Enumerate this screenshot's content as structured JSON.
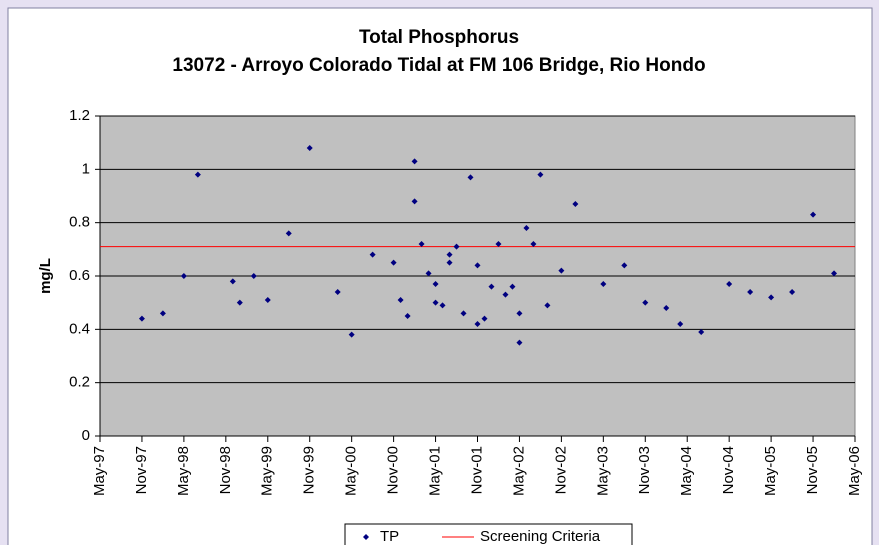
{
  "chart_data": {
    "type": "scatter",
    "title": [
      "Total Phosphorus",
      "13072 - Arroyo Colorado Tidal at FM 106 Bridge, Rio Hondo"
    ],
    "y_label": "mg/L",
    "series": [
      {
        "name": "TP",
        "color": "#000080",
        "x": [
          "1997-11",
          "1998-02",
          "1998-05",
          "1998-07",
          "1998-12",
          "1999-01",
          "1999-03",
          "1999-05",
          "1999-08",
          "1999-11",
          "2000-03",
          "2000-05",
          "2000-08",
          "2000-11",
          "2000-12",
          "2001-01",
          "2001-02",
          "2001-02",
          "2001-03",
          "2001-04",
          "2001-05",
          "2001-05",
          "2001-06",
          "2001-07",
          "2001-07",
          "2001-08",
          "2001-09",
          "2001-10",
          "2001-11",
          "2001-11",
          "2001-12",
          "2002-01",
          "2002-02",
          "2002-03",
          "2002-04",
          "2002-05",
          "2002-05",
          "2002-06",
          "2002-07",
          "2002-08",
          "2002-09",
          "2002-11",
          "2003-01",
          "2003-05",
          "2003-08",
          "2003-11",
          "2004-02",
          "2004-04",
          "2004-07",
          "2004-11",
          "2005-02",
          "2005-05",
          "2005-08",
          "2005-11",
          "2006-02"
        ],
        "values": [
          0.44,
          0.46,
          0.6,
          0.98,
          0.58,
          0.5,
          0.6,
          0.51,
          0.76,
          1.08,
          0.54,
          0.38,
          0.68,
          0.65,
          0.51,
          0.45,
          1.03,
          0.88,
          0.72,
          0.61,
          0.57,
          0.5,
          0.49,
          0.68,
          0.65,
          0.71,
          0.46,
          0.97,
          0.42,
          0.64,
          0.44,
          0.56,
          0.72,
          0.53,
          0.56,
          0.35,
          0.46,
          0.78,
          0.72,
          0.98,
          0.49,
          0.62,
          0.87,
          0.57,
          0.64,
          0.5,
          0.48,
          0.42,
          0.39,
          0.57,
          0.54,
          0.52,
          0.54,
          0.83,
          0.61
        ]
      }
    ],
    "reference_line": {
      "name": "Screening Criteria",
      "value": 0.71,
      "color": "#ff0000"
    },
    "plot_background": "#c0c0c0",
    "grid": true,
    "legend": "bottom",
    "ylim": [
      0,
      1.2
    ],
    "yticks": [
      0,
      {
        "value": 0.2,
        "label": "0.2"
      },
      {
        "value": 0.4,
        "label": "0.4"
      },
      {
        "value": 0.6,
        "label": "0.6"
      },
      {
        "value": 0.8,
        "label": "0.8"
      },
      1,
      {
        "value": 1.2,
        "label": "1.2"
      }
    ],
    "xlim": [
      "1997-05",
      "2006-05"
    ],
    "xticks": [
      {
        "value": "1997-05",
        "label": "May-97"
      },
      {
        "value": "1997-11",
        "label": "Nov-97"
      },
      {
        "value": "1998-05",
        "label": "May-98"
      },
      {
        "value": "1998-11",
        "label": "Nov-98"
      },
      {
        "value": "1999-05",
        "label": "May-99"
      },
      {
        "value": "1999-11",
        "label": "Nov-99"
      },
      {
        "value": "2000-05",
        "label": "May-00"
      },
      {
        "value": "2000-11",
        "label": "Nov-00"
      },
      {
        "value": "2001-05",
        "label": "May-01"
      },
      {
        "value": "2001-11",
        "label": "Nov-01"
      },
      {
        "value": "2002-05",
        "label": "May-02"
      },
      {
        "value": "2002-11",
        "label": "Nov-02"
      },
      {
        "value": "2003-05",
        "label": "May-03"
      },
      {
        "value": "2003-11",
        "label": "Nov-03"
      },
      {
        "value": "2004-05",
        "label": "May-04"
      },
      {
        "value": "2004-11",
        "label": "Nov-04"
      },
      {
        "value": "2005-05",
        "label": "May-05"
      },
      {
        "value": "2005-11",
        "label": "Nov-05"
      },
      {
        "value": "2006-05",
        "label": "May-06"
      }
    ]
  }
}
